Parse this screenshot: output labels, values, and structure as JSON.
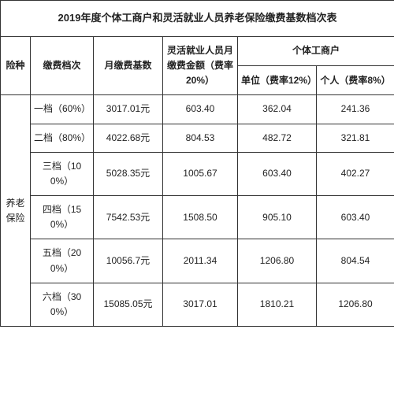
{
  "title": "2019年度个体工商户和灵活就业人员养老保险缴费基数档次表",
  "headers": {
    "insurance_type": "险种",
    "tier": "缴费档次",
    "base": "月缴费基数",
    "flex": "灵活就业人员月缴费金额（费率20%）",
    "business_group": "个体工商户",
    "unit": "单位（费率12%）",
    "person": "个人（费率8%）"
  },
  "insurance_type": "养老保险",
  "rows": [
    {
      "tier": "一档（60%）",
      "base": "3017.01元",
      "flex": "603.40",
      "unit": "362.04",
      "person": "241.36"
    },
    {
      "tier": "二档（80%）",
      "base": "4022.68元",
      "flex": "804.53",
      "unit": "482.72",
      "person": "321.81"
    },
    {
      "tier": "三档（100%）",
      "base": "5028.35元",
      "flex": "1005.67",
      "unit": "603.40",
      "person": "402.27"
    },
    {
      "tier": "四档（150%）",
      "base": "7542.53元",
      "flex": "1508.50",
      "unit": "905.10",
      "person": "603.40"
    },
    {
      "tier": "五档（200%）",
      "base": "10056.7元",
      "flex": "2011.34",
      "unit": "1206.80",
      "person": "804.54"
    },
    {
      "tier": "六档（300%）",
      "base": "15085.05元",
      "flex": "3017.01",
      "unit": "1810.21",
      "person": "1206.80"
    }
  ],
  "colors": {
    "border": "#333333",
    "text": "#222222",
    "background": "#ffffff"
  }
}
